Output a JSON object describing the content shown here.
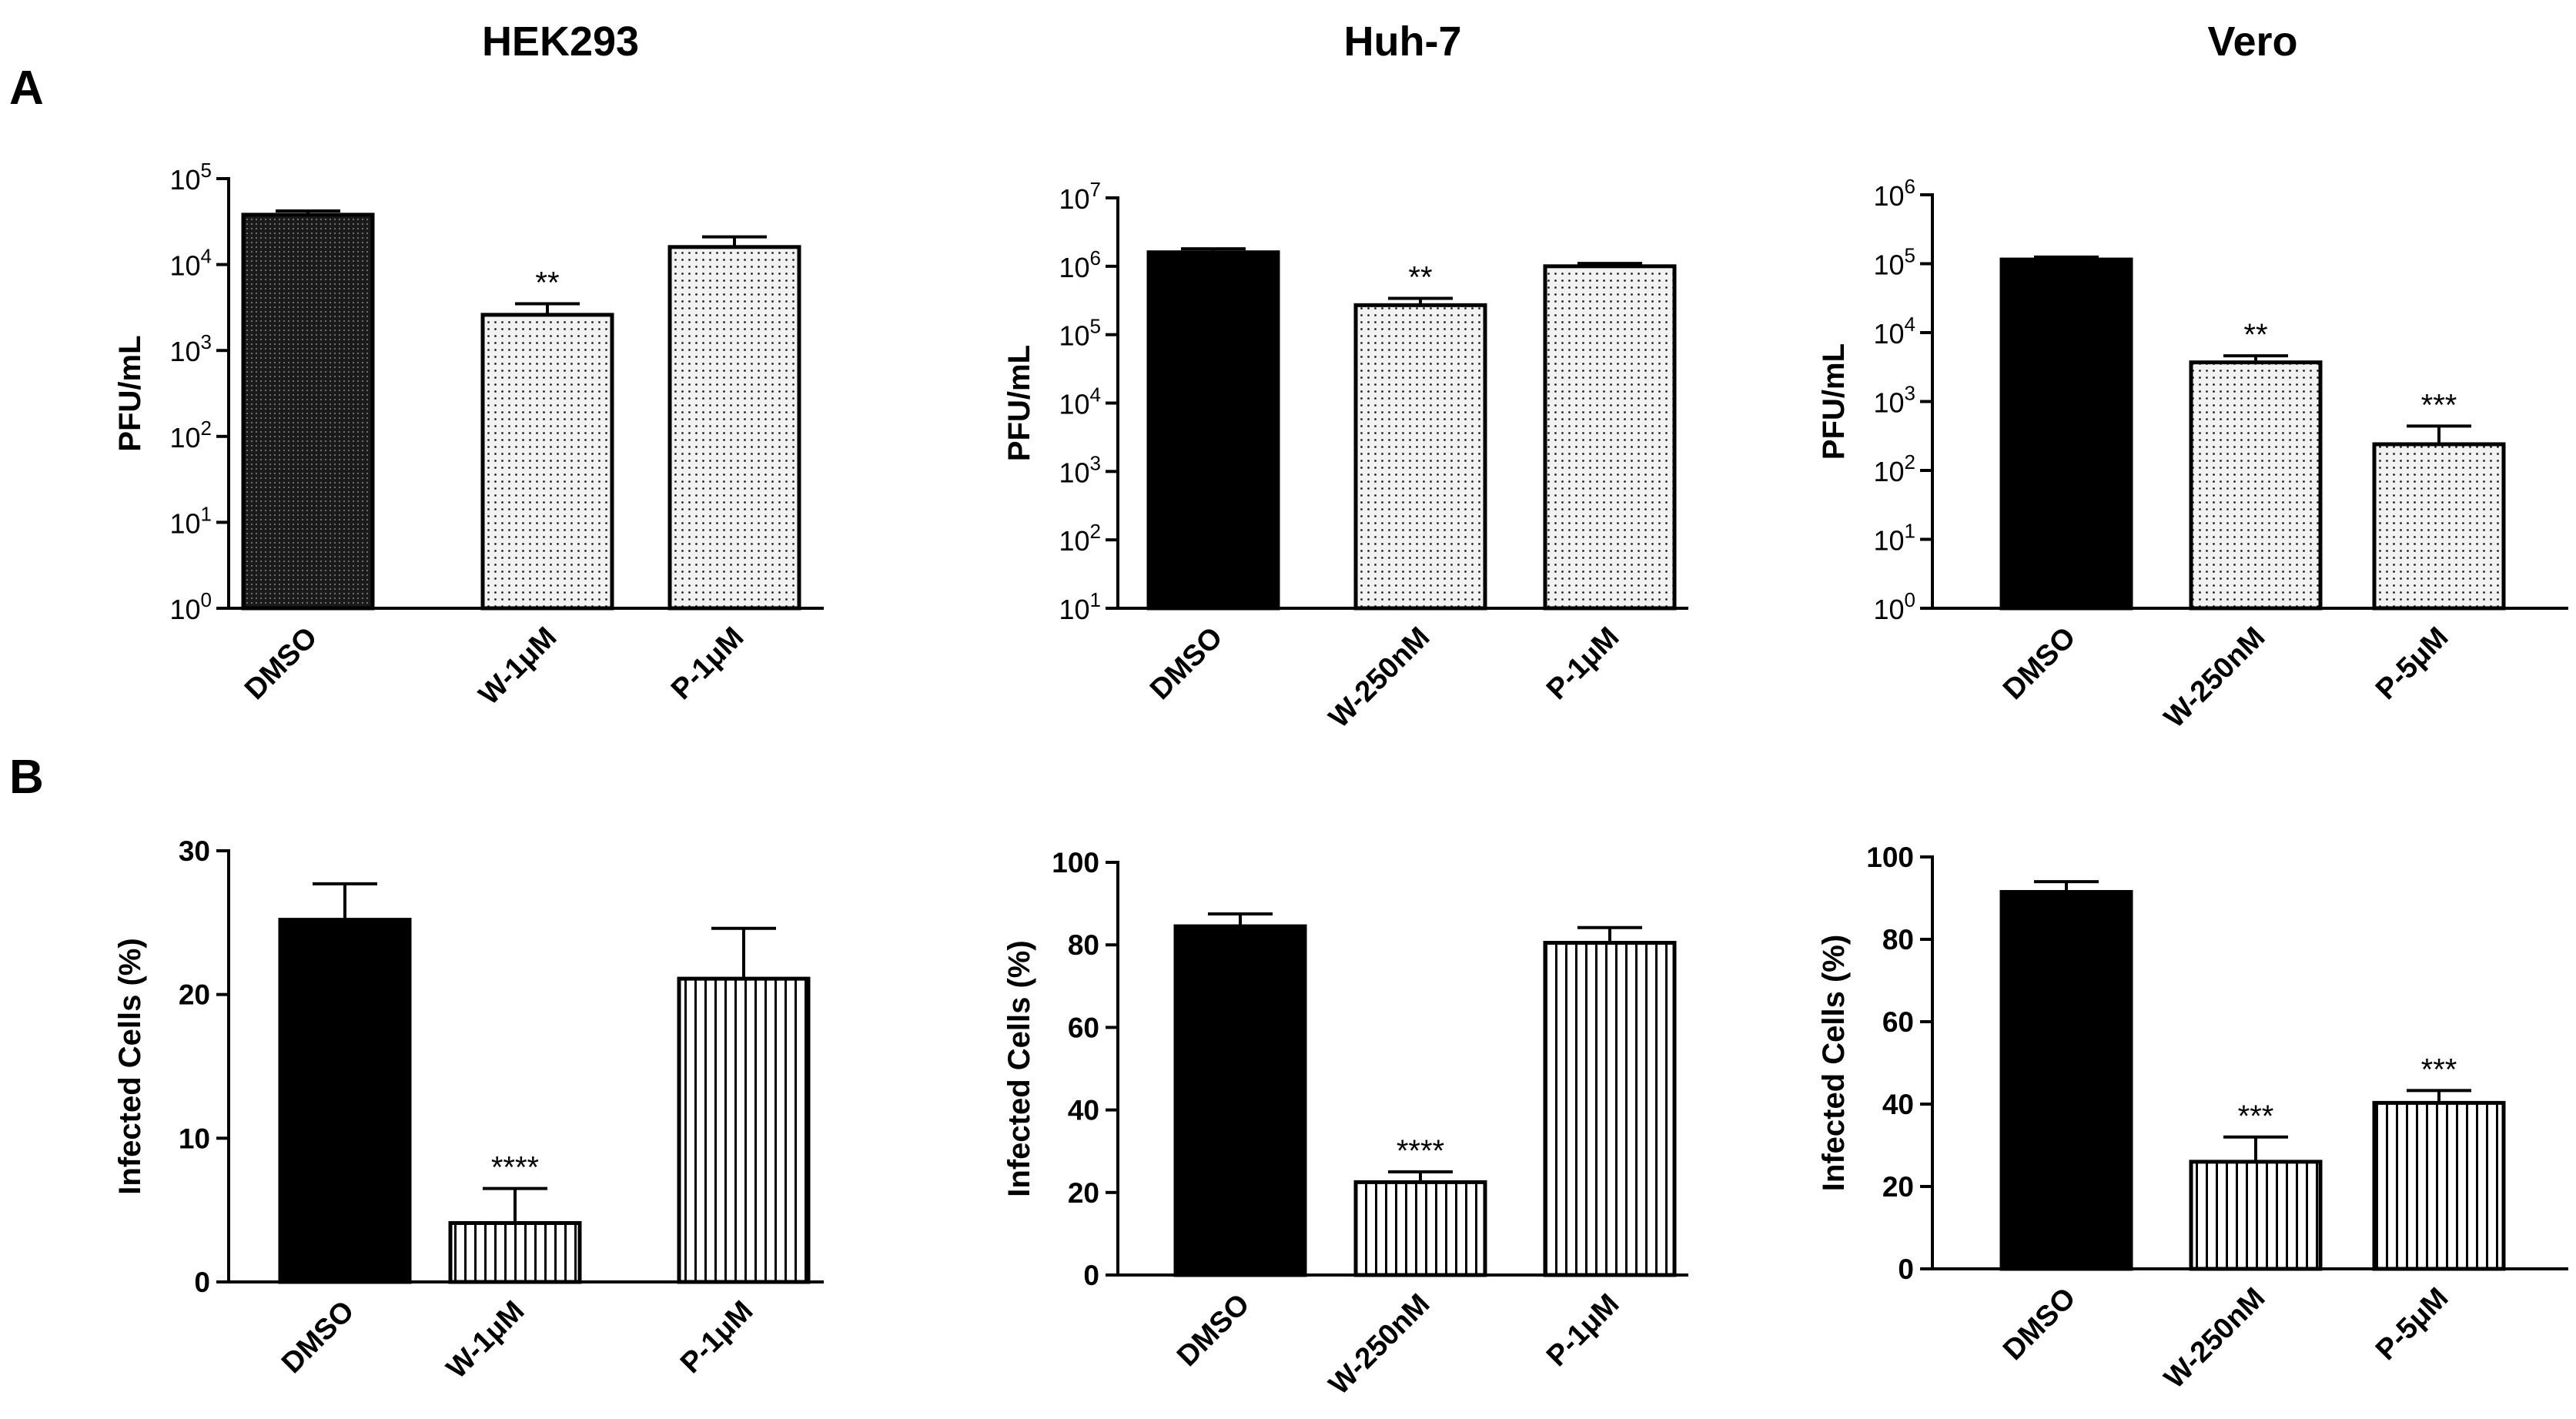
{
  "figure": {
    "column_titles": [
      "HEK293",
      "Huh-7",
      "Vero"
    ],
    "row_labels": [
      "A",
      "B"
    ]
  },
  "colors": {
    "ink": "#000000",
    "background": "#ffffff",
    "dotted_fill": "#f2f2f2"
  },
  "chart_data": [
    {
      "id": "A-HEK293",
      "type": "bar",
      "yscale": "log",
      "title": "HEK293",
      "ylabel": "PFU/mL",
      "ylim": [
        1,
        100000
      ],
      "y_ticks": [
        {
          "base": "10",
          "exp": "0"
        },
        {
          "base": "10",
          "exp": "1"
        },
        {
          "base": "10",
          "exp": "2"
        },
        {
          "base": "10",
          "exp": "3"
        },
        {
          "base": "10",
          "exp": "4"
        },
        {
          "base": "10",
          "exp": "5"
        }
      ],
      "categories": [
        "DMSO",
        "W-1μM",
        "P-1μM"
      ],
      "values": [
        38000,
        2600,
        16000
      ],
      "error": [
        42000,
        3500,
        21000
      ],
      "significance": [
        "",
        "**",
        ""
      ],
      "patterns": [
        "dense-dots",
        "sparse-dots",
        "sparse-dots"
      ]
    },
    {
      "id": "A-Huh7",
      "type": "bar",
      "yscale": "log",
      "title": "Huh-7",
      "ylabel": "PFU/mL",
      "ylim": [
        10,
        10000000
      ],
      "y_ticks": [
        {
          "base": "10",
          "exp": "1"
        },
        {
          "base": "10",
          "exp": "2"
        },
        {
          "base": "10",
          "exp": "3"
        },
        {
          "base": "10",
          "exp": "4"
        },
        {
          "base": "10",
          "exp": "5"
        },
        {
          "base": "10",
          "exp": "6"
        },
        {
          "base": "10",
          "exp": "7"
        }
      ],
      "categories": [
        "DMSO",
        "W-250nM",
        "P-1μM"
      ],
      "values": [
        1600000,
        270000,
        1000000
      ],
      "error": [
        1800000,
        340000,
        1100000
      ],
      "significance": [
        "",
        "**",
        ""
      ],
      "patterns": [
        "solid",
        "sparse-dots",
        "sparse-dots"
      ]
    },
    {
      "id": "A-Vero",
      "type": "bar",
      "yscale": "log",
      "title": "Vero",
      "ylabel": "PFU/mL",
      "ylim": [
        1,
        1000000
      ],
      "y_ticks": [
        {
          "base": "10",
          "exp": "0"
        },
        {
          "base": "10",
          "exp": "1"
        },
        {
          "base": "10",
          "exp": "2"
        },
        {
          "base": "10",
          "exp": "3"
        },
        {
          "base": "10",
          "exp": "4"
        },
        {
          "base": "10",
          "exp": "5"
        },
        {
          "base": "10",
          "exp": "6"
        }
      ],
      "categories": [
        "DMSO",
        "W-250nM",
        "P-5μM"
      ],
      "values": [
        115000,
        3700,
        240
      ],
      "error": [
        125000,
        4600,
        440
      ],
      "significance": [
        "",
        "**",
        "***"
      ],
      "patterns": [
        "solid",
        "sparse-dots",
        "sparse-dots"
      ]
    },
    {
      "id": "B-HEK293",
      "type": "bar",
      "yscale": "linear",
      "ylabel": "Infected Cells (%)",
      "ylim": [
        0,
        30
      ],
      "y_ticks": [
        "0",
        "10",
        "20",
        "30"
      ],
      "categories": [
        "DMSO",
        "W-1μM",
        "P-1μM"
      ],
      "values": [
        25.2,
        4.1,
        21.1
      ],
      "error": [
        27.7,
        6.5,
        24.6
      ],
      "significance": [
        "",
        "****",
        ""
      ],
      "patterns": [
        "solid",
        "stripes",
        "stripes"
      ]
    },
    {
      "id": "B-Huh7",
      "type": "bar",
      "yscale": "linear",
      "ylabel": "Infected Cells (%)",
      "ylim": [
        0,
        100
      ],
      "y_ticks": [
        "0",
        "20",
        "40",
        "60",
        "80",
        "100"
      ],
      "categories": [
        "DMSO",
        "W-250nM",
        "P-1μM"
      ],
      "values": [
        84.5,
        22.5,
        80.5
      ],
      "error": [
        87.5,
        25.0,
        84.2
      ],
      "significance": [
        "",
        "****",
        ""
      ],
      "patterns": [
        "solid",
        "stripes",
        "stripes"
      ]
    },
    {
      "id": "B-Vero",
      "type": "bar",
      "yscale": "linear",
      "ylabel": "Infected Cells (%)",
      "ylim": [
        0,
        100
      ],
      "y_ticks": [
        "0",
        "20",
        "40",
        "60",
        "80",
        "100"
      ],
      "categories": [
        "DMSO",
        "W-250nM",
        "P-5μM"
      ],
      "values": [
        91.5,
        26.0,
        40.3
      ],
      "error": [
        94.0,
        32.0,
        43.3
      ],
      "significance": [
        "",
        "***",
        "***"
      ],
      "patterns": [
        "solid",
        "stripes",
        "stripes"
      ]
    }
  ]
}
